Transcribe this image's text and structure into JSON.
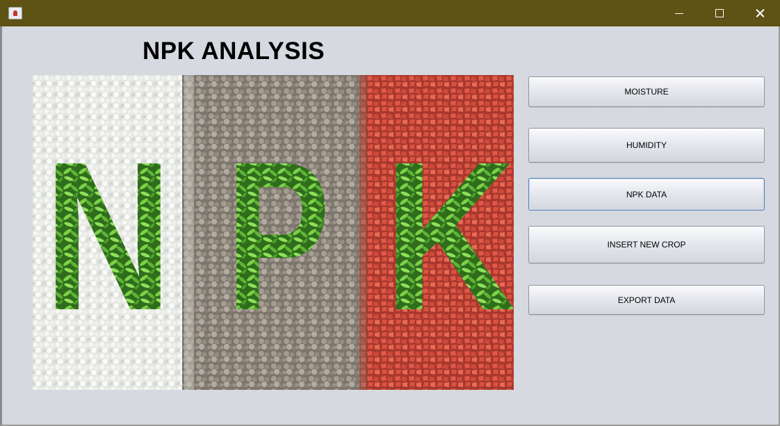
{
  "window": {
    "app_icon": "java-cup-icon",
    "controls": [
      "minimize-icon",
      "maximize-icon",
      "close-icon"
    ]
  },
  "main": {
    "title": "NPK ANALYSIS",
    "image": {
      "letters": [
        "N",
        "P",
        "K"
      ]
    }
  },
  "buttons": {
    "moisture": "MOISTURE",
    "humidity": "HUMIDITY",
    "npk_data": "NPK DATA",
    "insert_new_crop": "INSERT NEW CROP",
    "export_data": "EXPORT DATA"
  },
  "colors": {
    "titlebar": "#5e5214",
    "background": "#d6d9e0",
    "focus_border": "#5a7fb0"
  }
}
